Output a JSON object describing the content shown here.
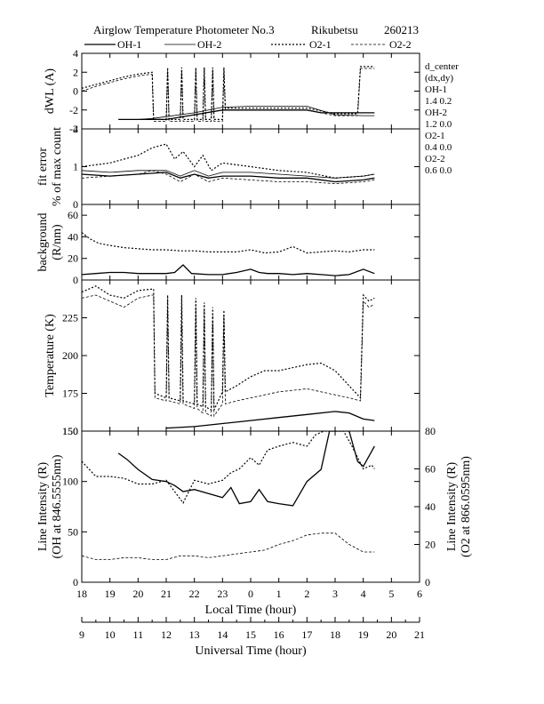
{
  "header": {
    "title": "Airglow Temperature Photometer No.3",
    "station": "Rikubetsu",
    "date": "260213"
  },
  "legend": [
    {
      "label": "OH-1",
      "style": "solid"
    },
    {
      "label": "OH-2",
      "style": "solid-thin"
    },
    {
      "label": "O2-1",
      "style": "dotted"
    },
    {
      "label": "O2-2",
      "style": "dashed"
    }
  ],
  "d_center": {
    "title": "d_center",
    "subtitle": "(dx,dy)",
    "rows": [
      {
        "label": "OH-1",
        "value": "1.4   0.2"
      },
      {
        "label": "OH-2",
        "value": "1.2   0.0"
      },
      {
        "label": "O2-1",
        "value": "0.4   0.0"
      },
      {
        "label": "O2-2",
        "value": "0.6   0.0"
      }
    ]
  },
  "x_axes": {
    "local_label": "Local Time (hour)",
    "local_ticks": [
      "18",
      "19",
      "20",
      "21",
      "22",
      "23",
      "0",
      "1",
      "2",
      "3",
      "4",
      "5",
      "6"
    ],
    "ut_label": "Universal Time (hour)",
    "ut_ticks": [
      "9",
      "10",
      "11",
      "12",
      "13",
      "14",
      "15",
      "16",
      "17",
      "18",
      "19",
      "20",
      "21"
    ]
  },
  "chart_data": [
    {
      "type": "line",
      "ylabel": "dWL (A)",
      "ylim": [
        -4,
        4
      ],
      "yticks": [
        "-4",
        "-2",
        "0",
        "2",
        "4"
      ],
      "x_unit": "Universal Time (hour)",
      "series": [
        {
          "name": "OH-1",
          "x": [
            10.3,
            11,
            12,
            13,
            14,
            15,
            16,
            17,
            17.5,
            18,
            19,
            19.4
          ],
          "y": [
            -3,
            -3,
            -3,
            -2.5,
            -2,
            -2,
            -2,
            -2,
            -2.3,
            -2.3,
            -2.3,
            -2.3
          ]
        },
        {
          "name": "OH-2",
          "x": [
            10.3,
            11,
            11.5,
            12,
            13,
            14,
            15,
            16,
            17,
            18,
            19,
            19.4
          ],
          "y": [
            -3,
            -3,
            -2.9,
            -2.7,
            -2.3,
            -1.7,
            -1.6,
            -1.6,
            -1.6,
            -2.5,
            -2.6,
            -2.6
          ]
        },
        {
          "name": "O2-1",
          "x": [
            9,
            9.5,
            10,
            10.5,
            11,
            11.5,
            11.55,
            12,
            12.05,
            12.1,
            12.5,
            12.55,
            12.6,
            13,
            13.05,
            13.1,
            13.3,
            13.35,
            13.4,
            13.6,
            13.65,
            13.7,
            14,
            14.05,
            14.1,
            15,
            16,
            17,
            18,
            18.8,
            18.9,
            19,
            19.4
          ],
          "y": [
            0.3,
            0.7,
            1.1,
            1.5,
            1.8,
            2,
            -3,
            -3,
            2.5,
            -3,
            -3,
            2.5,
            -3,
            -3,
            2.5,
            -3,
            -3,
            2.5,
            -3,
            -3,
            2.5,
            -3,
            -3,
            2.5,
            -1.8,
            -1.8,
            -1.8,
            -1.8,
            -2.4,
            -2.4,
            2.6,
            2.6,
            2.6
          ]
        },
        {
          "name": "O2-2",
          "x": [
            9,
            9.5,
            10,
            10.5,
            11,
            11.5,
            11.55,
            12,
            12.05,
            12.1,
            12.5,
            12.55,
            12.6,
            13,
            13.05,
            13.1,
            13.3,
            13.35,
            13.4,
            13.6,
            13.65,
            13.7,
            14,
            14.05,
            14.1,
            15,
            16,
            17,
            18,
            18.8,
            18.9,
            19,
            19.4
          ],
          "y": [
            0,
            0.5,
            0.9,
            1.3,
            1.6,
            1.8,
            -3.2,
            -3.2,
            2.2,
            -3.2,
            -3.2,
            2.2,
            -3.2,
            -3.2,
            2.2,
            -3.2,
            -3.2,
            2.2,
            -3.2,
            -3.2,
            2.2,
            -3.2,
            -3.2,
            2.2,
            -2,
            -2,
            -2,
            -2,
            -2.6,
            -2.6,
            2.4,
            2.4,
            2.4
          ]
        }
      ]
    },
    {
      "type": "line",
      "ylabel": "fit error",
      "ylabel2": "% of max count",
      "ylim": [
        0,
        2
      ],
      "yticks": [
        "0",
        "1",
        "2"
      ],
      "x_unit": "Universal Time (hour)",
      "series": [
        {
          "name": "OH-1",
          "x": [
            9,
            10,
            11,
            12,
            12.5,
            13,
            13.5,
            14,
            15,
            16,
            17,
            18,
            19,
            19.4
          ],
          "y": [
            0.8,
            0.75,
            0.8,
            0.85,
            0.7,
            0.8,
            0.7,
            0.75,
            0.75,
            0.7,
            0.7,
            0.6,
            0.65,
            0.7
          ]
        },
        {
          "name": "OH-2",
          "x": [
            9,
            10,
            11,
            12,
            12.5,
            13,
            13.5,
            14,
            15,
            16,
            17,
            18,
            19,
            19.4
          ],
          "y": [
            0.9,
            0.85,
            0.9,
            0.9,
            0.75,
            0.9,
            0.75,
            0.85,
            0.85,
            0.8,
            0.75,
            0.7,
            0.75,
            0.8
          ]
        },
        {
          "name": "O2-1",
          "x": [
            9,
            10,
            11,
            11.5,
            12,
            12.3,
            12.6,
            13,
            13.3,
            13.6,
            14,
            15,
            16,
            17,
            18,
            19,
            19.4
          ],
          "y": [
            1,
            1.1,
            1.3,
            1.5,
            1.6,
            1.2,
            1.4,
            1,
            1.3,
            0.9,
            1.1,
            1,
            0.9,
            0.85,
            0.7,
            0.75,
            0.8
          ]
        },
        {
          "name": "O2-2",
          "x": [
            9,
            10,
            11,
            11.5,
            12,
            12.5,
            13,
            13.5,
            14,
            15,
            16,
            17,
            18,
            19,
            19.4
          ],
          "y": [
            0.7,
            0.75,
            0.8,
            0.9,
            0.8,
            0.6,
            0.8,
            0.6,
            0.7,
            0.65,
            0.6,
            0.6,
            0.55,
            0.6,
            0.65
          ]
        }
      ]
    },
    {
      "type": "line",
      "ylabel": "background",
      "ylabel2": "(R/nm)",
      "ylim": [
        0,
        70
      ],
      "yticks": [
        "0",
        "20",
        "40",
        "60"
      ],
      "x_unit": "Universal Time (hour)",
      "series": [
        {
          "name": "OH-1",
          "x": [
            9,
            9.5,
            10,
            10.5,
            11,
            11.5,
            12,
            12.3,
            12.6,
            12.9,
            13.5,
            14,
            14.5,
            15,
            15.3,
            15.6,
            16,
            16.5,
            17,
            17.5,
            18,
            18.5,
            19,
            19.4
          ],
          "y": [
            5,
            6,
            7,
            7,
            6,
            6,
            6,
            7,
            14,
            6,
            5,
            5,
            7,
            10,
            7,
            6,
            6,
            5,
            6,
            5,
            4,
            5,
            10,
            6
          ]
        },
        {
          "name": "O2-1",
          "x": [
            9,
            9.3,
            9.6,
            10,
            10.5,
            11,
            11.5,
            12,
            12.5,
            13,
            13.5,
            14,
            14.5,
            15,
            15.5,
            16,
            16.5,
            17,
            17.5,
            18,
            18.5,
            19,
            19.4
          ],
          "y": [
            44,
            38,
            34,
            32,
            30,
            29,
            28,
            28,
            27,
            27,
            26,
            26,
            26,
            28,
            25,
            26,
            31,
            25,
            26,
            27,
            26,
            28,
            28
          ]
        }
      ]
    },
    {
      "type": "line",
      "ylabel": "Temperature (K)",
      "ylim": [
        150,
        250
      ],
      "yticks": [
        "150",
        "175",
        "200",
        "225"
      ],
      "x_unit": "Universal Time (hour)",
      "series": [
        {
          "name": "OH-1",
          "x": [
            12,
            13,
            14,
            15,
            16,
            17,
            18,
            18.5,
            19,
            19.4
          ],
          "y": [
            152,
            153,
            155,
            157,
            159,
            161,
            163,
            162,
            158,
            157
          ]
        },
        {
          "name": "O2-1",
          "x": [
            9,
            9.5,
            10,
            10.5,
            11,
            11.5,
            11.55,
            11.6,
            12,
            12.05,
            12.1,
            12.5,
            12.55,
            12.6,
            13,
            13.05,
            13.1,
            13.3,
            13.35,
            13.4,
            13.6,
            13.65,
            13.7,
            14,
            14.05,
            14.1,
            14.5,
            15,
            15.5,
            16,
            16.5,
            17,
            17.5,
            18,
            18.5,
            18.9,
            19,
            19.2,
            19.4
          ],
          "y": [
            242,
            246,
            240,
            238,
            243,
            244,
            244,
            175,
            172,
            240,
            172,
            170,
            240,
            170,
            168,
            238,
            168,
            166,
            235,
            166,
            164,
            232,
            164,
            176,
            230,
            176,
            180,
            186,
            190,
            190,
            192,
            194,
            195,
            190,
            180,
            172,
            240,
            236,
            238
          ]
        },
        {
          "name": "O2-2",
          "x": [
            9,
            9.5,
            10,
            10.5,
            11,
            11.5,
            11.55,
            11.6,
            12,
            12.05,
            12.1,
            12.5,
            12.55,
            12.6,
            13,
            13.05,
            13.1,
            13.3,
            13.35,
            13.4,
            13.6,
            13.65,
            13.7,
            14,
            14.05,
            14.1,
            14.5,
            15,
            15.5,
            16,
            16.5,
            17,
            17.5,
            18,
            18.5,
            18.9,
            19,
            19.2,
            19.4
          ],
          "y": [
            238,
            240,
            236,
            232,
            238,
            240,
            240,
            172,
            170,
            236,
            170,
            168,
            234,
            168,
            165,
            232,
            165,
            162,
            230,
            162,
            160,
            228,
            160,
            168,
            226,
            168,
            170,
            172,
            174,
            176,
            177,
            178,
            176,
            174,
            172,
            170,
            236,
            232,
            234
          ]
        }
      ]
    },
    {
      "type": "line",
      "ylabel": "Line Intensity (R)",
      "ylabel2": "(OH at 846.5555nm)",
      "ylabel_right": "Line Intensity (R)",
      "ylabel_right2": "(O2 at 866.0595nm)",
      "ylim": [
        0,
        150
      ],
      "ylim_right": [
        0,
        80
      ],
      "yticks": [
        "0",
        "50",
        "100",
        "150"
      ],
      "yticks_right": [
        "0",
        "20",
        "40",
        "60",
        "80"
      ],
      "x_unit": "Universal Time (hour)",
      "series": [
        {
          "name": "OH-1",
          "axis": "left",
          "x": [
            10.3,
            10.6,
            11,
            11.5,
            12,
            12.3,
            12.6,
            13,
            13.5,
            14,
            14.3,
            14.6,
            15,
            15.3,
            15.6,
            16,
            16.5,
            17,
            17.5,
            17.8,
            18,
            18.5,
            18.8,
            19,
            19.4
          ],
          "y": [
            128,
            122,
            112,
            102,
            100,
            96,
            90,
            92,
            88,
            84,
            94,
            78,
            80,
            92,
            80,
            78,
            76,
            100,
            112,
            150,
            150,
            150,
            120,
            115,
            135
          ]
        },
        {
          "name": "O2-1",
          "axis": "right",
          "x": [
            9,
            9.5,
            10,
            10.5,
            11,
            11.5,
            12,
            12.3,
            12.6,
            13,
            13.5,
            14,
            14.3,
            14.6,
            15,
            15.3,
            15.6,
            16,
            16.5,
            17,
            17.3,
            17.6,
            18,
            18.3,
            18.6,
            19,
            19.3,
            19.4
          ],
          "y": [
            64,
            56,
            56,
            55,
            52,
            52,
            54,
            48,
            42,
            54,
            52,
            54,
            58,
            60,
            66,
            62,
            70,
            72,
            74,
            72,
            78,
            80,
            80,
            80,
            72,
            60,
            62,
            60
          ]
        },
        {
          "name": "O2-2",
          "axis": "right",
          "x": [
            9,
            9.5,
            10,
            10.5,
            11,
            11.5,
            12,
            12.5,
            13,
            13.5,
            14,
            14.5,
            15,
            15.5,
            16,
            16.5,
            17,
            17.5,
            18,
            18.5,
            19,
            19.4
          ],
          "y": [
            14,
            12,
            12,
            13,
            13,
            12,
            12,
            14,
            14,
            13,
            14,
            15,
            16,
            17,
            20,
            22,
            25,
            26,
            26,
            20,
            16,
            16
          ]
        }
      ]
    }
  ]
}
